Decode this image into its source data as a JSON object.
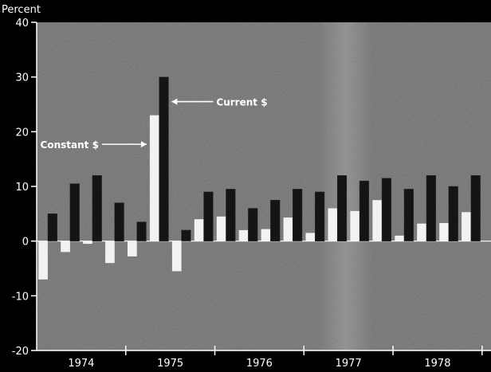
{
  "chart_data": {
    "type": "bar",
    "ylabel": "Percent",
    "ylim": [
      -20,
      40
    ],
    "yticks": [
      40,
      30,
      20,
      10,
      0,
      -10,
      -20
    ],
    "year_labels": [
      "1974",
      "1975",
      "1976",
      "1977",
      "1978"
    ],
    "categories": [
      "1974 Q1",
      "1974 Q2",
      "1974 Q3",
      "1974 Q4",
      "1975 Q1",
      "1975 Q2",
      "1975 Q3",
      "1975 Q4",
      "1976 Q1",
      "1976 Q2",
      "1976 Q3",
      "1976 Q4",
      "1977 Q1",
      "1977 Q2",
      "1977 Q3",
      "1977 Q4",
      "1978 Q1",
      "1978 Q2",
      "1978 Q3",
      "1978 Q4"
    ],
    "series": [
      {
        "name": "Constant $",
        "color": "#f2f2f2",
        "values": [
          -7,
          -2,
          -0.5,
          -4,
          -2.8,
          23,
          -5.5,
          4,
          4.5,
          2,
          2.2,
          4.3,
          1.5,
          6,
          5.5,
          7.5,
          1,
          3.2,
          3.3,
          5.3
        ]
      },
      {
        "name": "Current $",
        "color": "#141414",
        "values": [
          5,
          10.5,
          12,
          7,
          3.5,
          30,
          2,
          9,
          9.5,
          6,
          7.5,
          9.5,
          9,
          12,
          11,
          11.5,
          9.5,
          12,
          10,
          12
        ]
      }
    ],
    "annotations": [
      {
        "text": "Current $",
        "series": "Current $",
        "category": "1975 Q2"
      },
      {
        "text": "Constant $",
        "series": "Constant $",
        "category": "1975 Q2"
      }
    ],
    "colors": {
      "background": "#000000",
      "plot_area": "#6e6e6e",
      "text": "#ffffff"
    },
    "grid": false
  }
}
